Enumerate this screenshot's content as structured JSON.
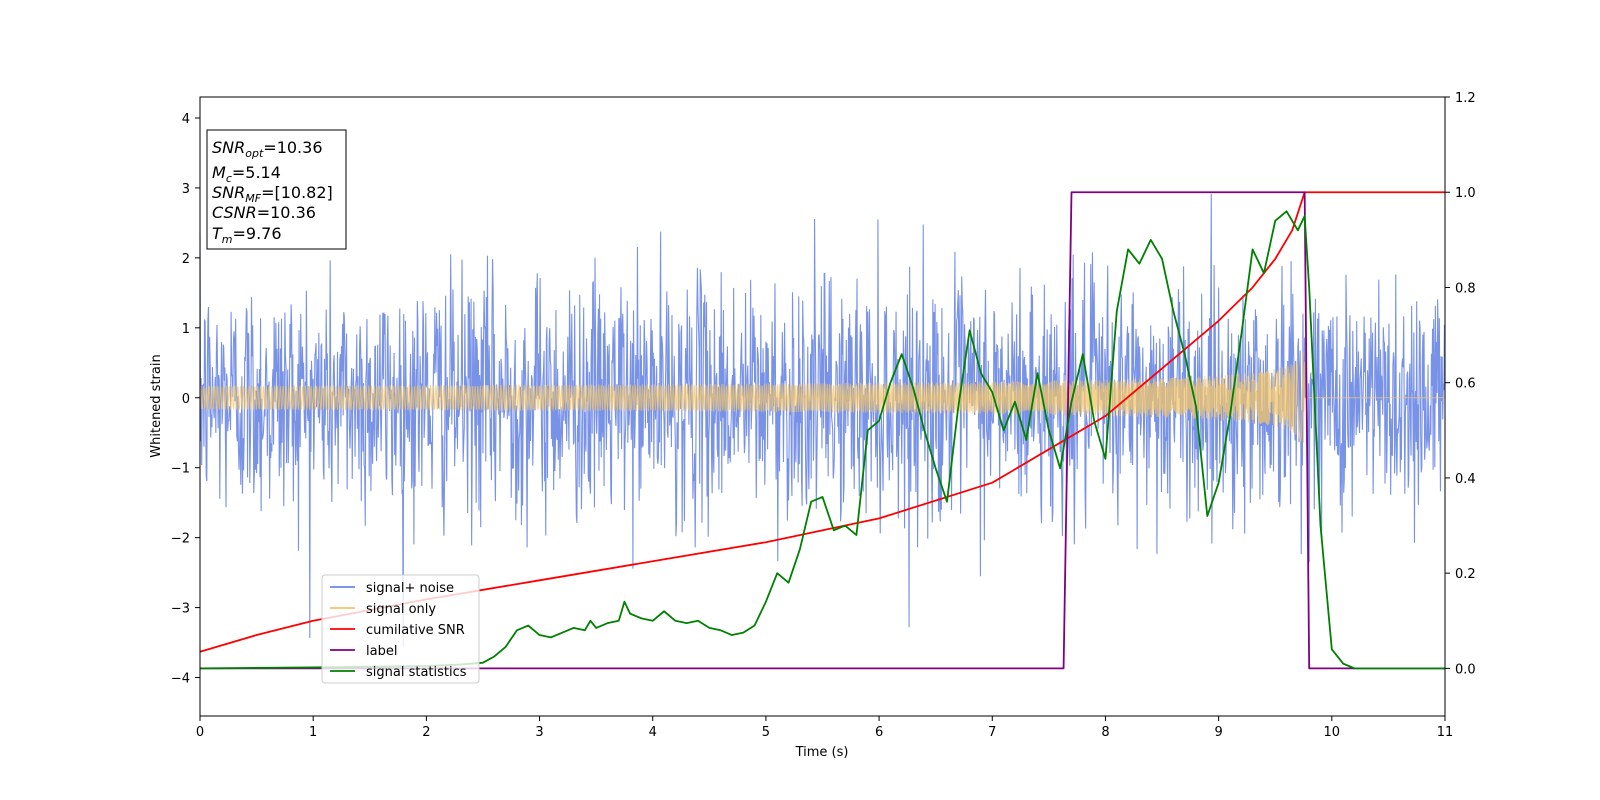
{
  "chart_data": {
    "type": "line",
    "xlabel": "Time (s)",
    "ylabel": "Whitened strain",
    "xlim": [
      0,
      11
    ],
    "ylim_left": [
      -4.55,
      4.3
    ],
    "ylim_right": [
      -0.1,
      1.2
    ],
    "xticks": [
      "0",
      "1",
      "2",
      "3",
      "4",
      "5",
      "6",
      "7",
      "8",
      "9",
      "10",
      "11"
    ],
    "yticks_left": [
      "4",
      "3",
      "2",
      "1",
      "0",
      "−1",
      "−2",
      "−3",
      "−4"
    ],
    "yticks_left_values": [
      4,
      3,
      2,
      1,
      0,
      -1,
      -2,
      -3,
      -4
    ],
    "yticks_right": [
      "0.0",
      "0.2",
      "0.4",
      "0.6",
      "0.8",
      "1.0",
      "1.2"
    ],
    "yticks_right_values": [
      0.0,
      0.2,
      0.4,
      0.6,
      0.8,
      1.0,
      1.2
    ],
    "grid": false,
    "legend_position": "lower-left",
    "annotation": {
      "lines": [
        {
          "sym": "SNR",
          "sub": "opt",
          "val": "=10.36"
        },
        {
          "sym": "M",
          "sub": "c",
          "val": "=5.14"
        },
        {
          "sym": "SNR",
          "sub": "MF",
          "val": "=[10.82]"
        },
        {
          "sym": "CSNR",
          "sub": "",
          "val": "=10.36"
        },
        {
          "sym": "T",
          "sub": "m",
          "val": "=9.76"
        }
      ]
    },
    "series": [
      {
        "name": "signal+ noise",
        "color": "#6c89e6",
        "axis": "left",
        "kind": "noise",
        "typical_range": [
          -2.0,
          2.0
        ],
        "extremes": [
          -4.15,
          3.9
        ]
      },
      {
        "name": "signal only",
        "color": "#f2c46b",
        "axis": "left",
        "kind": "chirp",
        "merger_time": 9.76,
        "peak_amplitude": 0.8
      },
      {
        "name": "cumilative SNR",
        "color": "#ff0000",
        "axis": "right",
        "x": [
          0,
          0.5,
          1,
          2,
          3,
          4,
          5,
          6,
          7,
          8,
          8.5,
          9,
          9.3,
          9.5,
          9.65,
          9.76,
          11
        ],
        "y": [
          0.035,
          0.07,
          0.1,
          0.145,
          0.185,
          0.225,
          0.265,
          0.315,
          0.39,
          0.53,
          0.63,
          0.73,
          0.8,
          0.86,
          0.92,
          1.0,
          1.0
        ]
      },
      {
        "name": "label",
        "color": "#800080",
        "axis": "right",
        "x": [
          0,
          7.63,
          7.7,
          9.76,
          9.8,
          11
        ],
        "y": [
          0,
          0,
          1,
          1,
          0,
          0
        ]
      },
      {
        "name": "signal statistics",
        "color": "#008000",
        "axis": "right",
        "x": [
          0,
          1,
          2,
          2.3,
          2.5,
          2.6,
          2.7,
          2.8,
          2.9,
          3.0,
          3.1,
          3.2,
          3.3,
          3.4,
          3.45,
          3.5,
          3.6,
          3.7,
          3.75,
          3.8,
          3.9,
          4.0,
          4.1,
          4.2,
          4.3,
          4.4,
          4.5,
          4.6,
          4.7,
          4.8,
          4.9,
          5.0,
          5.1,
          5.2,
          5.3,
          5.4,
          5.5,
          5.6,
          5.7,
          5.8,
          5.9,
          6.0,
          6.1,
          6.2,
          6.3,
          6.4,
          6.5,
          6.6,
          6.7,
          6.8,
          6.9,
          7.0,
          7.1,
          7.2,
          7.3,
          7.4,
          7.5,
          7.6,
          7.7,
          7.8,
          7.9,
          8.0,
          8.1,
          8.2,
          8.3,
          8.4,
          8.5,
          8.6,
          8.7,
          8.8,
          8.9,
          9.0,
          9.1,
          9.2,
          9.3,
          9.4,
          9.5,
          9.6,
          9.7,
          9.76,
          9.8,
          9.9,
          10.0,
          10.1,
          10.2,
          11
        ],
        "y": [
          0,
          0.002,
          0.005,
          0.008,
          0.012,
          0.025,
          0.045,
          0.08,
          0.09,
          0.07,
          0.065,
          0.075,
          0.085,
          0.08,
          0.1,
          0.085,
          0.095,
          0.1,
          0.14,
          0.115,
          0.105,
          0.1,
          0.12,
          0.1,
          0.095,
          0.1,
          0.085,
          0.08,
          0.07,
          0.075,
          0.09,
          0.14,
          0.2,
          0.18,
          0.25,
          0.35,
          0.36,
          0.29,
          0.3,
          0.28,
          0.5,
          0.52,
          0.6,
          0.66,
          0.59,
          0.5,
          0.42,
          0.35,
          0.55,
          0.71,
          0.62,
          0.58,
          0.5,
          0.56,
          0.48,
          0.62,
          0.5,
          0.42,
          0.56,
          0.66,
          0.52,
          0.44,
          0.75,
          0.88,
          0.85,
          0.9,
          0.86,
          0.75,
          0.66,
          0.55,
          0.32,
          0.39,
          0.53,
          0.7,
          0.88,
          0.83,
          0.94,
          0.96,
          0.92,
          0.95,
          0.8,
          0.3,
          0.04,
          0.01,
          0.0,
          0.0
        ]
      }
    ]
  }
}
